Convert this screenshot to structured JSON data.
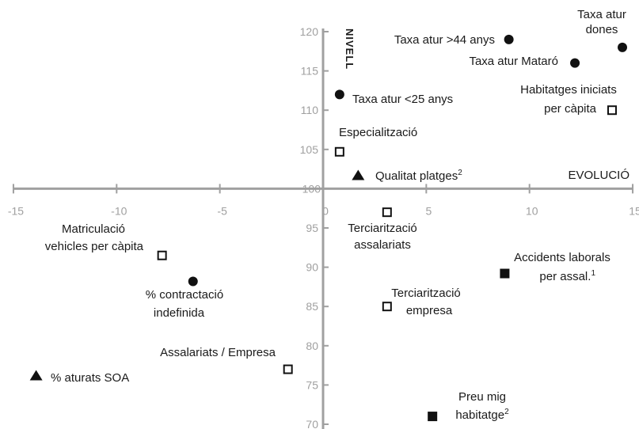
{
  "chart_data": {
    "type": "scatter",
    "xlabel": "EVOLUCIÓ",
    "ylabel": "NIVELL",
    "xlim": [
      -15,
      15
    ],
    "ylim": [
      70,
      120
    ],
    "x_cross": 100,
    "y_cross": 0,
    "x_ticks": [
      -15,
      -10,
      -5,
      0,
      5,
      10,
      15
    ],
    "y_ticks": [
      70,
      75,
      80,
      85,
      90,
      95,
      100,
      105,
      110,
      115,
      120
    ],
    "grid": false,
    "legend": "none",
    "colors": {
      "axis": "#a0a0a0",
      "marker": "#111111"
    },
    "points": [
      {
        "label": "Taxa atur dones",
        "x": 14.5,
        "y": 118,
        "marker": "circle"
      },
      {
        "label": "Taxa atur >44 anys",
        "x": 9,
        "y": 119,
        "marker": "circle"
      },
      {
        "label": "Taxa atur Mataró",
        "x": 12.2,
        "y": 116,
        "marker": "circle"
      },
      {
        "label": "Taxa atur <25 anys",
        "x": 0.8,
        "y": 112,
        "marker": "circle"
      },
      {
        "label": "Habitatges iniciats per càpita",
        "x": 14,
        "y": 110,
        "marker": "square-open"
      },
      {
        "label": "Especialització",
        "x": 0.8,
        "y": 104.7,
        "marker": "square-open"
      },
      {
        "label": "Qualitat platges",
        "note": "2",
        "x": 1.7,
        "y": 101.7,
        "marker": "triangle"
      },
      {
        "label": "Terciarització assalariats",
        "x": 3.1,
        "y": 97,
        "marker": "square-open"
      },
      {
        "label": "Matriculació vehicles per càpita",
        "x": -7.8,
        "y": 91.5,
        "marker": "square-open"
      },
      {
        "label": "Accidents laborals per assal.",
        "note": "1",
        "x": 8.8,
        "y": 89.2,
        "marker": "square-filled"
      },
      {
        "label": "% contractació indefinida",
        "x": -6.3,
        "y": 88.2,
        "marker": "circle"
      },
      {
        "label": "Terciarització empresa",
        "x": 3.1,
        "y": 85,
        "marker": "square-open"
      },
      {
        "label": "Assalariats / Empresa",
        "x": -1.7,
        "y": 77,
        "marker": "square-open"
      },
      {
        "label": "% aturats SOA",
        "x": -13.9,
        "y": 76.2,
        "marker": "triangle"
      },
      {
        "label": "Preu mig habitatge",
        "note": "2",
        "x": 5.3,
        "y": 71,
        "marker": "square-filled"
      }
    ]
  }
}
